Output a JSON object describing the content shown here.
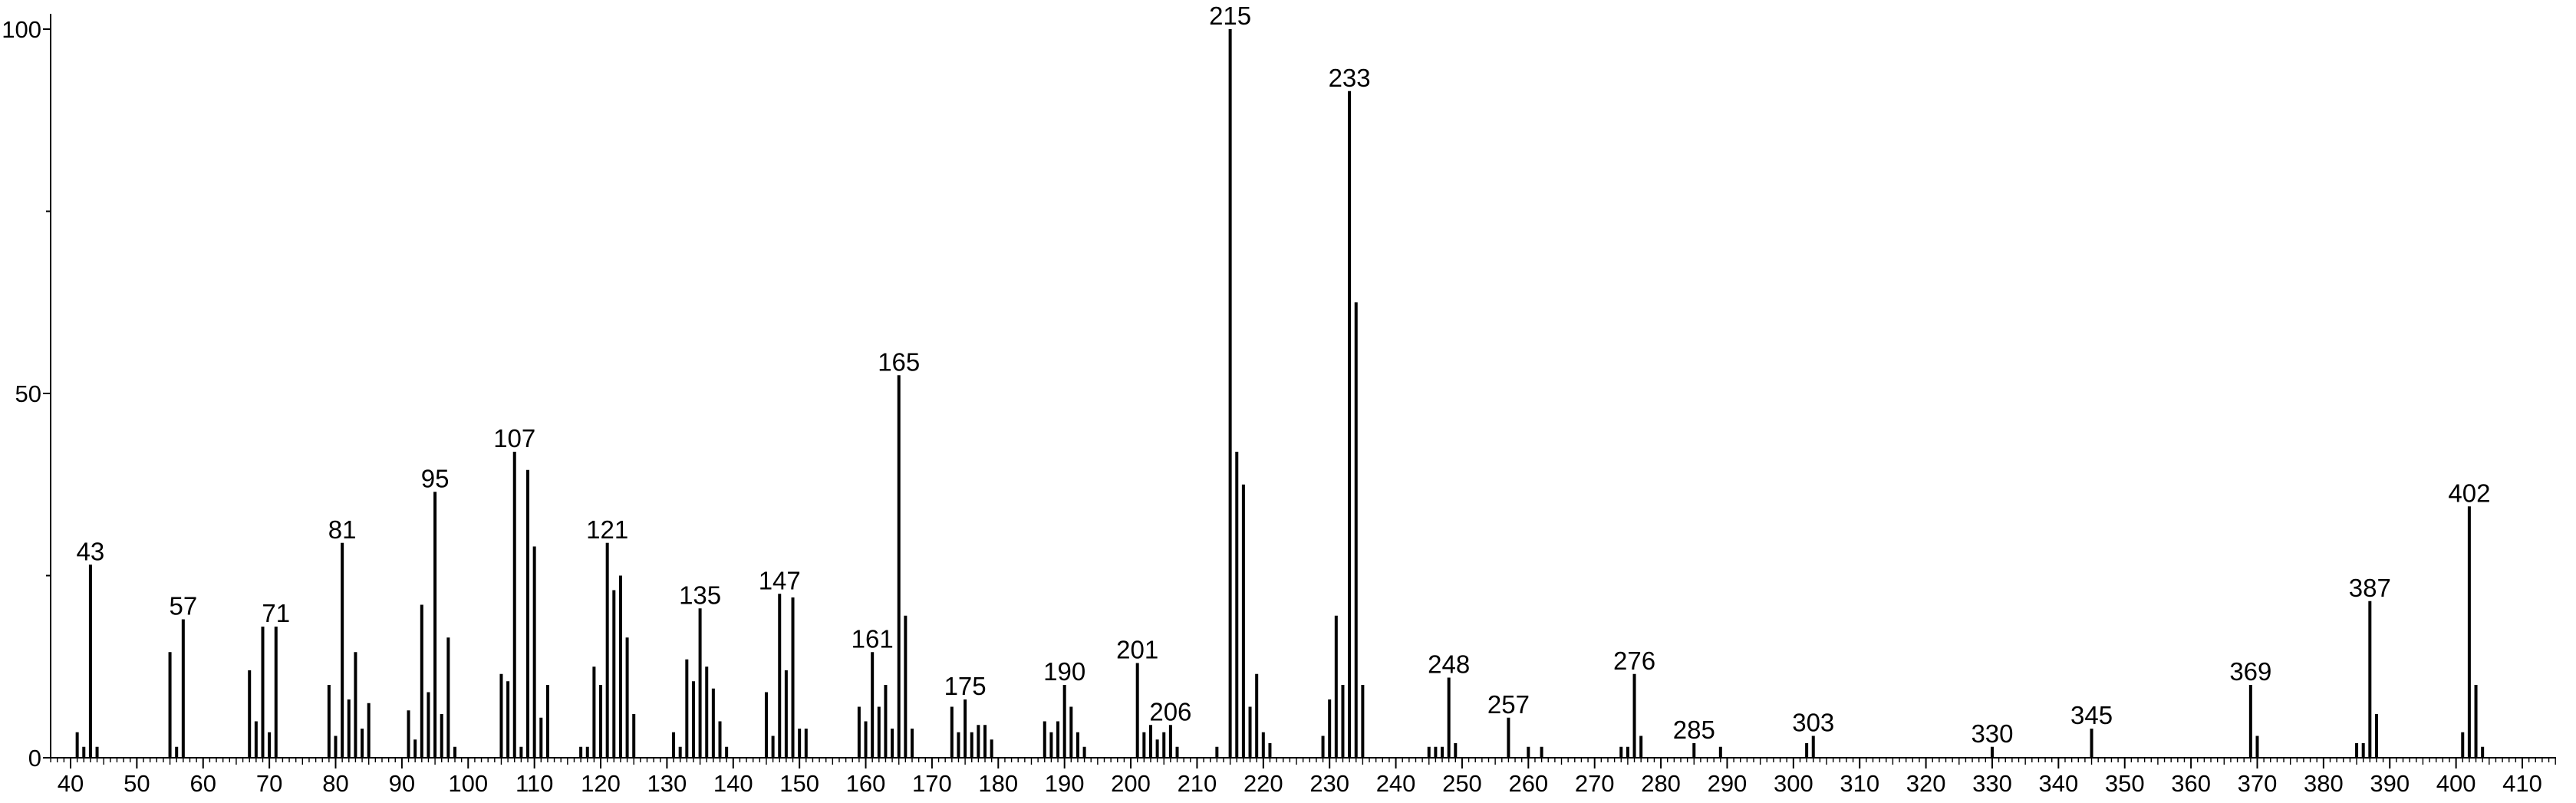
{
  "chart_data": {
    "type": "bar",
    "title": "",
    "xlabel": "",
    "ylabel": "",
    "xlim": [
      36,
      416
    ],
    "ylim": [
      0,
      100
    ],
    "grid": false,
    "x_ticks": [
      40,
      50,
      60,
      70,
      80,
      90,
      100,
      110,
      120,
      130,
      140,
      150,
      160,
      170,
      180,
      190,
      200,
      210,
      220,
      230,
      240,
      250,
      260,
      270,
      280,
      290,
      300,
      310,
      320,
      330,
      340,
      350,
      360,
      370,
      380,
      390,
      400,
      410
    ],
    "x_tick_labels": [
      "40",
      "50",
      "60",
      "70",
      "80",
      "90",
      "100",
      "110",
      "120",
      "130",
      "140",
      "150",
      "160",
      "170",
      "180",
      "190",
      "200",
      "210",
      "220",
      "230",
      "240",
      "250",
      "260",
      "270",
      "280",
      "290",
      "300",
      "310",
      "320",
      "330",
      "340",
      "350",
      "360",
      "370",
      "380",
      "390",
      "400",
      "410"
    ],
    "y_ticks": [
      0,
      50,
      100
    ],
    "y_tick_labels": [
      "0",
      "50",
      "100"
    ],
    "peaks": [
      {
        "x": 41,
        "y": 3.5
      },
      {
        "x": 42,
        "y": 1.5
      },
      {
        "x": 43,
        "y": 26.5,
        "label": "43"
      },
      {
        "x": 44,
        "y": 1.5
      },
      {
        "x": 55,
        "y": 14.5
      },
      {
        "x": 56,
        "y": 1.5
      },
      {
        "x": 57,
        "y": 19,
        "label": "57"
      },
      {
        "x": 67,
        "y": 12
      },
      {
        "x": 68,
        "y": 5
      },
      {
        "x": 69,
        "y": 18
      },
      {
        "x": 70,
        "y": 3.5
      },
      {
        "x": 71,
        "y": 18,
        "label": "71"
      },
      {
        "x": 79,
        "y": 10
      },
      {
        "x": 80,
        "y": 3
      },
      {
        "x": 81,
        "y": 29.5,
        "label": "81"
      },
      {
        "x": 82,
        "y": 8
      },
      {
        "x": 83,
        "y": 14.5
      },
      {
        "x": 84,
        "y": 4
      },
      {
        "x": 85,
        "y": 7.5
      },
      {
        "x": 91,
        "y": 6.5
      },
      {
        "x": 92,
        "y": 2.5
      },
      {
        "x": 93,
        "y": 21
      },
      {
        "x": 94,
        "y": 9
      },
      {
        "x": 95,
        "y": 36.5,
        "label": "95"
      },
      {
        "x": 96,
        "y": 6
      },
      {
        "x": 97,
        "y": 16.5
      },
      {
        "x": 98,
        "y": 1.5
      },
      {
        "x": 105,
        "y": 11.5
      },
      {
        "x": 106,
        "y": 10.5
      },
      {
        "x": 107,
        "y": 42,
        "label": "107"
      },
      {
        "x": 108,
        "y": 1.5
      },
      {
        "x": 109,
        "y": 39.5
      },
      {
        "x": 110,
        "y": 29
      },
      {
        "x": 111,
        "y": 5.5
      },
      {
        "x": 112,
        "y": 10
      },
      {
        "x": 117,
        "y": 1.5
      },
      {
        "x": 118,
        "y": 1.5
      },
      {
        "x": 119,
        "y": 12.5
      },
      {
        "x": 120,
        "y": 10
      },
      {
        "x": 121,
        "y": 29.5,
        "label": "121"
      },
      {
        "x": 122,
        "y": 23
      },
      {
        "x": 123,
        "y": 25
      },
      {
        "x": 124,
        "y": 16.5
      },
      {
        "x": 125,
        "y": 6
      },
      {
        "x": 131,
        "y": 3.5
      },
      {
        "x": 132,
        "y": 1.5
      },
      {
        "x": 133,
        "y": 13.5
      },
      {
        "x": 134,
        "y": 10.5
      },
      {
        "x": 135,
        "y": 20.5,
        "label": "135"
      },
      {
        "x": 136,
        "y": 12.5
      },
      {
        "x": 137,
        "y": 9.5
      },
      {
        "x": 138,
        "y": 5
      },
      {
        "x": 139,
        "y": 1.5
      },
      {
        "x": 145,
        "y": 9
      },
      {
        "x": 146,
        "y": 3
      },
      {
        "x": 147,
        "y": 22.5,
        "label": "147"
      },
      {
        "x": 148,
        "y": 12
      },
      {
        "x": 149,
        "y": 22
      },
      {
        "x": 150,
        "y": 4
      },
      {
        "x": 151,
        "y": 4
      },
      {
        "x": 159,
        "y": 7
      },
      {
        "x": 160,
        "y": 5
      },
      {
        "x": 161,
        "y": 14.5,
        "label": "161"
      },
      {
        "x": 162,
        "y": 7
      },
      {
        "x": 163,
        "y": 10
      },
      {
        "x": 164,
        "y": 4
      },
      {
        "x": 165,
        "y": 52.5,
        "label": "165"
      },
      {
        "x": 166,
        "y": 19.5
      },
      {
        "x": 167,
        "y": 4
      },
      {
        "x": 173,
        "y": 7
      },
      {
        "x": 174,
        "y": 3.5
      },
      {
        "x": 175,
        "y": 8,
        "label": "175"
      },
      {
        "x": 176,
        "y": 3.5
      },
      {
        "x": 177,
        "y": 4.5
      },
      {
        "x": 178,
        "y": 4.5
      },
      {
        "x": 179,
        "y": 2.5
      },
      {
        "x": 187,
        "y": 5
      },
      {
        "x": 188,
        "y": 3.5
      },
      {
        "x": 189,
        "y": 5
      },
      {
        "x": 190,
        "y": 10,
        "label": "190"
      },
      {
        "x": 191,
        "y": 7
      },
      {
        "x": 192,
        "y": 3.5
      },
      {
        "x": 193,
        "y": 1.5
      },
      {
        "x": 201,
        "y": 13,
        "label": "201"
      },
      {
        "x": 202,
        "y": 3.5
      },
      {
        "x": 203,
        "y": 4.5
      },
      {
        "x": 204,
        "y": 2.5
      },
      {
        "x": 205,
        "y": 3.5
      },
      {
        "x": 206,
        "y": 4.5,
        "label": "206"
      },
      {
        "x": 207,
        "y": 1.5
      },
      {
        "x": 213,
        "y": 1.5
      },
      {
        "x": 215,
        "y": 100,
        "label": "215"
      },
      {
        "x": 216,
        "y": 42
      },
      {
        "x": 217,
        "y": 37.5
      },
      {
        "x": 218,
        "y": 7
      },
      {
        "x": 219,
        "y": 11.5
      },
      {
        "x": 220,
        "y": 3.5
      },
      {
        "x": 221,
        "y": 2
      },
      {
        "x": 229,
        "y": 3
      },
      {
        "x": 230,
        "y": 8
      },
      {
        "x": 231,
        "y": 19.5
      },
      {
        "x": 232,
        "y": 10
      },
      {
        "x": 233,
        "y": 91.5,
        "label": "233"
      },
      {
        "x": 234,
        "y": 62.5
      },
      {
        "x": 235,
        "y": 10
      },
      {
        "x": 245,
        "y": 1.5
      },
      {
        "x": 246,
        "y": 1.5
      },
      {
        "x": 247,
        "y": 1.5
      },
      {
        "x": 248,
        "y": 11,
        "label": "248"
      },
      {
        "x": 249,
        "y": 2
      },
      {
        "x": 257,
        "y": 5.5,
        "label": "257"
      },
      {
        "x": 260,
        "y": 1.5
      },
      {
        "x": 262,
        "y": 1.5
      },
      {
        "x": 274,
        "y": 1.5
      },
      {
        "x": 275,
        "y": 1.5
      },
      {
        "x": 276,
        "y": 11.5,
        "label": "276"
      },
      {
        "x": 277,
        "y": 3
      },
      {
        "x": 285,
        "y": 2,
        "label": "285"
      },
      {
        "x": 289,
        "y": 1.5
      },
      {
        "x": 302,
        "y": 2
      },
      {
        "x": 303,
        "y": 3,
        "label": "303"
      },
      {
        "x": 330,
        "y": 1.5,
        "label": "330"
      },
      {
        "x": 345,
        "y": 4,
        "label": "345"
      },
      {
        "x": 369,
        "y": 10,
        "label": "369"
      },
      {
        "x": 370,
        "y": 3
      },
      {
        "x": 385,
        "y": 2
      },
      {
        "x": 386,
        "y": 2
      },
      {
        "x": 387,
        "y": 21.5,
        "label": "387"
      },
      {
        "x": 388,
        "y": 6
      },
      {
        "x": 401,
        "y": 3.5
      },
      {
        "x": 402,
        "y": 34.5,
        "label": "402"
      },
      {
        "x": 403,
        "y": 10
      },
      {
        "x": 404,
        "y": 1.5
      }
    ]
  }
}
